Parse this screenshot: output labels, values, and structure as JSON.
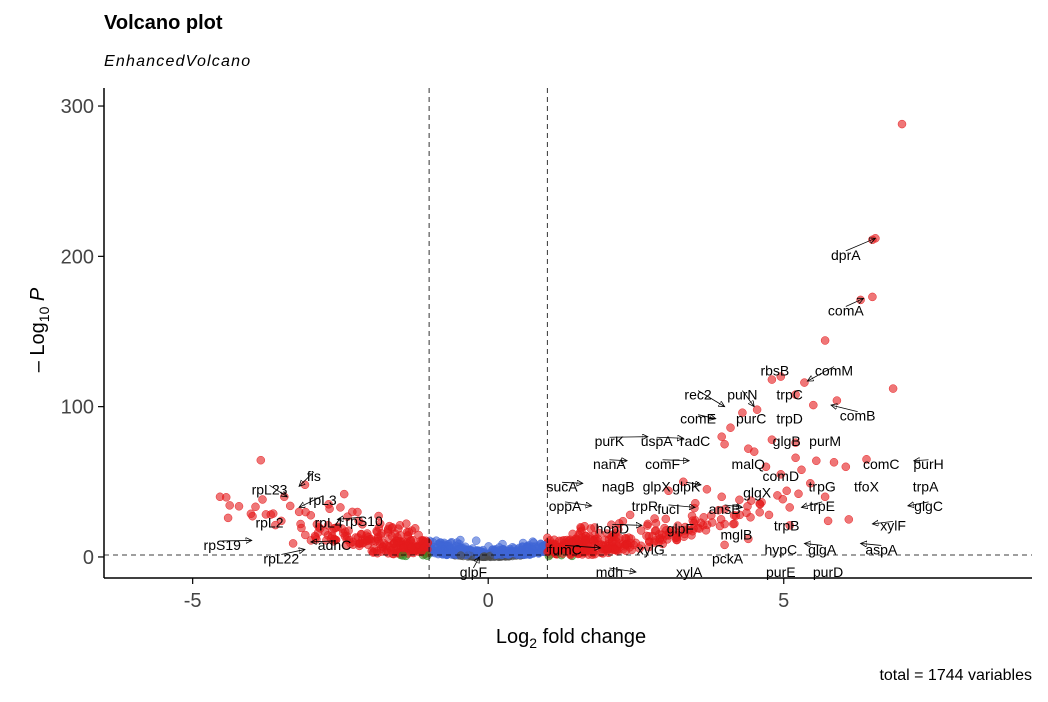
{
  "chart_data": {
    "type": "scatter",
    "title": "Volcano plot",
    "subtitle": "EnhancedVolcano",
    "caption": "total = 1744 variables",
    "xlabel_main": "Log",
    "xlabel_sub": "2",
    "xlabel_tail": " fold change",
    "ylabel_main": "– Log",
    "ylabel_sub": "10",
    "ylabel_tail": " P",
    "xlim": [
      -6.5,
      9.2
    ],
    "ylim": [
      -14,
      312
    ],
    "x_ticks": [
      -5,
      0,
      5
    ],
    "x_tick_labels": [
      "-5",
      "0",
      "5"
    ],
    "y_ticks": [
      0,
      100,
      200,
      300
    ],
    "y_tick_labels": [
      "0",
      "100",
      "200",
      "300"
    ],
    "fc_cutoff": 1,
    "p_cutoff_log": 1.3,
    "grid": false,
    "legend": "none",
    "colors": {
      "ns": "#4d4d4d",
      "log2fc": "#2e8b22",
      "p": "#3f66d6",
      "p_and_log2fc": "#e41a1c"
    },
    "labels": [
      {
        "text": "dprA",
        "x": 6.55,
        "y": 212,
        "lx": 6.05,
        "ly": 201
      },
      {
        "text": "comA",
        "x": 6.35,
        "y": 172,
        "lx": 6.05,
        "ly": 164
      },
      {
        "text": "rbsB",
        "x": 4.8,
        "y": 118,
        "lx": 4.85,
        "ly": 124
      },
      {
        "text": "comM",
        "x": 5.4,
        "y": 117,
        "lx": 5.85,
        "ly": 124
      },
      {
        "text": "trpC",
        "x": 5.2,
        "y": 108,
        "lx": 5.1,
        "ly": 108
      },
      {
        "text": "comB",
        "x": 5.8,
        "y": 101,
        "lx": 6.25,
        "ly": 94
      },
      {
        "text": "rec2",
        "x": 4.0,
        "y": 100,
        "lx": 3.55,
        "ly": 108
      },
      {
        "text": "purN",
        "x": 4.5,
        "y": 100,
        "lx": 4.3,
        "ly": 108
      },
      {
        "text": "comE",
        "x": 3.85,
        "y": 92,
        "lx": 3.55,
        "ly": 92
      },
      {
        "text": "purC",
        "x": 4.5,
        "y": 91,
        "lx": 4.45,
        "ly": 92
      },
      {
        "text": "trpD",
        "x": 5.1,
        "y": 89,
        "lx": 5.1,
        "ly": 92
      },
      {
        "text": "purK",
        "x": 2.7,
        "y": 80,
        "lx": 2.05,
        "ly": 77
      },
      {
        "text": "uspA",
        "x": 3.3,
        "y": 79,
        "lx": 2.85,
        "ly": 77
      },
      {
        "text": "radC",
        "x": 3.65,
        "y": 79,
        "lx": 3.5,
        "ly": 77
      },
      {
        "text": "glgB",
        "x": 5.2,
        "y": 78,
        "lx": 5.05,
        "ly": 77
      },
      {
        "text": "purM",
        "x": 5.5,
        "y": 78,
        "lx": 5.7,
        "ly": 77
      },
      {
        "text": "nanA",
        "x": 2.35,
        "y": 64,
        "lx": 2.05,
        "ly": 62
      },
      {
        "text": "comF",
        "x": 3.4,
        "y": 64,
        "lx": 2.95,
        "ly": 62
      },
      {
        "text": "malQ",
        "x": 4.55,
        "y": 62,
        "lx": 4.4,
        "ly": 62
      },
      {
        "text": "comC",
        "x": 6.5,
        "y": 64,
        "lx": 6.65,
        "ly": 62
      },
      {
        "text": "purH",
        "x": 7.2,
        "y": 64,
        "lx": 7.45,
        "ly": 62
      },
      {
        "text": "comD",
        "x": 4.95,
        "y": 54,
        "lx": 4.95,
        "ly": 54
      },
      {
        "text": "sucA",
        "x": 1.6,
        "y": 49,
        "lx": 1.25,
        "ly": 47
      },
      {
        "text": "nagB",
        "x": 2.25,
        "y": 49,
        "lx": 2.2,
        "ly": 47
      },
      {
        "text": "glpX",
        "x": 2.95,
        "y": 49,
        "lx": 2.85,
        "ly": 47
      },
      {
        "text": "glpK",
        "x": 3.6,
        "y": 48,
        "lx": 3.35,
        "ly": 47
      },
      {
        "text": "trpG",
        "x": 5.8,
        "y": 48,
        "lx": 5.65,
        "ly": 47
      },
      {
        "text": "tfoX",
        "x": 6.5,
        "y": 48,
        "lx": 6.4,
        "ly": 47
      },
      {
        "text": "trpA",
        "x": 7.25,
        "y": 48,
        "lx": 7.4,
        "ly": 47
      },
      {
        "text": "glgX",
        "x": 4.7,
        "y": 45,
        "lx": 4.55,
        "ly": 43
      },
      {
        "text": "oppA",
        "x": 1.75,
        "y": 34,
        "lx": 1.3,
        "ly": 34
      },
      {
        "text": "trpR",
        "x": 2.7,
        "y": 34,
        "lx": 2.65,
        "ly": 34
      },
      {
        "text": "fucI",
        "x": 3.5,
        "y": 33,
        "lx": 3.05,
        "ly": 32
      },
      {
        "text": "ansB",
        "x": 4.3,
        "y": 33,
        "lx": 4.0,
        "ly": 32
      },
      {
        "text": "trpE",
        "x": 5.3,
        "y": 33,
        "lx": 5.65,
        "ly": 34
      },
      {
        "text": "glgC",
        "x": 7.1,
        "y": 34,
        "lx": 7.45,
        "ly": 34
      },
      {
        "text": "hopD",
        "x": 2.6,
        "y": 21,
        "lx": 2.1,
        "ly": 19
      },
      {
        "text": "glpF",
        "x": 3.1,
        "y": 21,
        "lx": 3.25,
        "ly": 19
      },
      {
        "text": "trpB",
        "x": 4.85,
        "y": 22,
        "lx": 5.05,
        "ly": 21
      },
      {
        "text": "xylF",
        "x": 6.5,
        "y": 22,
        "lx": 6.85,
        "ly": 21
      },
      {
        "text": "mglB",
        "x": 4.35,
        "y": 14,
        "lx": 4.2,
        "ly": 15
      },
      {
        "text": "fumC",
        "x": 1.9,
        "y": 6,
        "lx": 1.3,
        "ly": 5
      },
      {
        "text": "xylG",
        "x": 2.9,
        "y": 6,
        "lx": 2.75,
        "ly": 5
      },
      {
        "text": "hypC",
        "x": 4.9,
        "y": 7,
        "lx": 4.95,
        "ly": 5
      },
      {
        "text": "glgA",
        "x": 5.35,
        "y": 9,
        "lx": 5.65,
        "ly": 5
      },
      {
        "text": "aspA",
        "x": 6.3,
        "y": 9,
        "lx": 6.65,
        "ly": 5
      },
      {
        "text": "pckA",
        "x": 4.1,
        "y": 2,
        "lx": 4.05,
        "ly": -1
      },
      {
        "text": "mdh",
        "x": 2.5,
        "y": -10,
        "lx": 2.05,
        "ly": -10
      },
      {
        "text": "xylA",
        "x": 3.6,
        "y": -10,
        "lx": 3.4,
        "ly": -10
      },
      {
        "text": "purE",
        "x": 4.95,
        "y": -10,
        "lx": 4.95,
        "ly": -10
      },
      {
        "text": "purD",
        "x": 5.55,
        "y": -10,
        "lx": 5.75,
        "ly": -10
      },
      {
        "text": "glpF",
        "x": -0.15,
        "y": 0,
        "lx": -0.25,
        "ly": -10
      },
      {
        "text": "fis",
        "x": -3.2,
        "y": 47,
        "lx": -2.95,
        "ly": 54
      },
      {
        "text": "rpL23",
        "x": -3.4,
        "y": 40,
        "lx": -3.7,
        "ly": 45
      },
      {
        "text": "rpL3",
        "x": -3.2,
        "y": 33,
        "lx": -2.8,
        "ly": 38
      },
      {
        "text": "rpL2",
        "x": -3.5,
        "y": 25,
        "lx": -3.7,
        "ly": 23
      },
      {
        "text": "rpL4",
        "x": -2.9,
        "y": 25,
        "lx": -2.7,
        "ly": 23
      },
      {
        "text": "rpS10",
        "x": -2.55,
        "y": 25,
        "lx": -2.1,
        "ly": 24
      },
      {
        "text": "rpS19",
        "x": -4.0,
        "y": 11,
        "lx": -4.5,
        "ly": 8
      },
      {
        "text": "adhC",
        "x": -3.0,
        "y": 10,
        "lx": -2.6,
        "ly": 8
      },
      {
        "text": "rpL22",
        "x": -3.1,
        "y": 5,
        "lx": -3.5,
        "ly": -1
      }
    ]
  }
}
